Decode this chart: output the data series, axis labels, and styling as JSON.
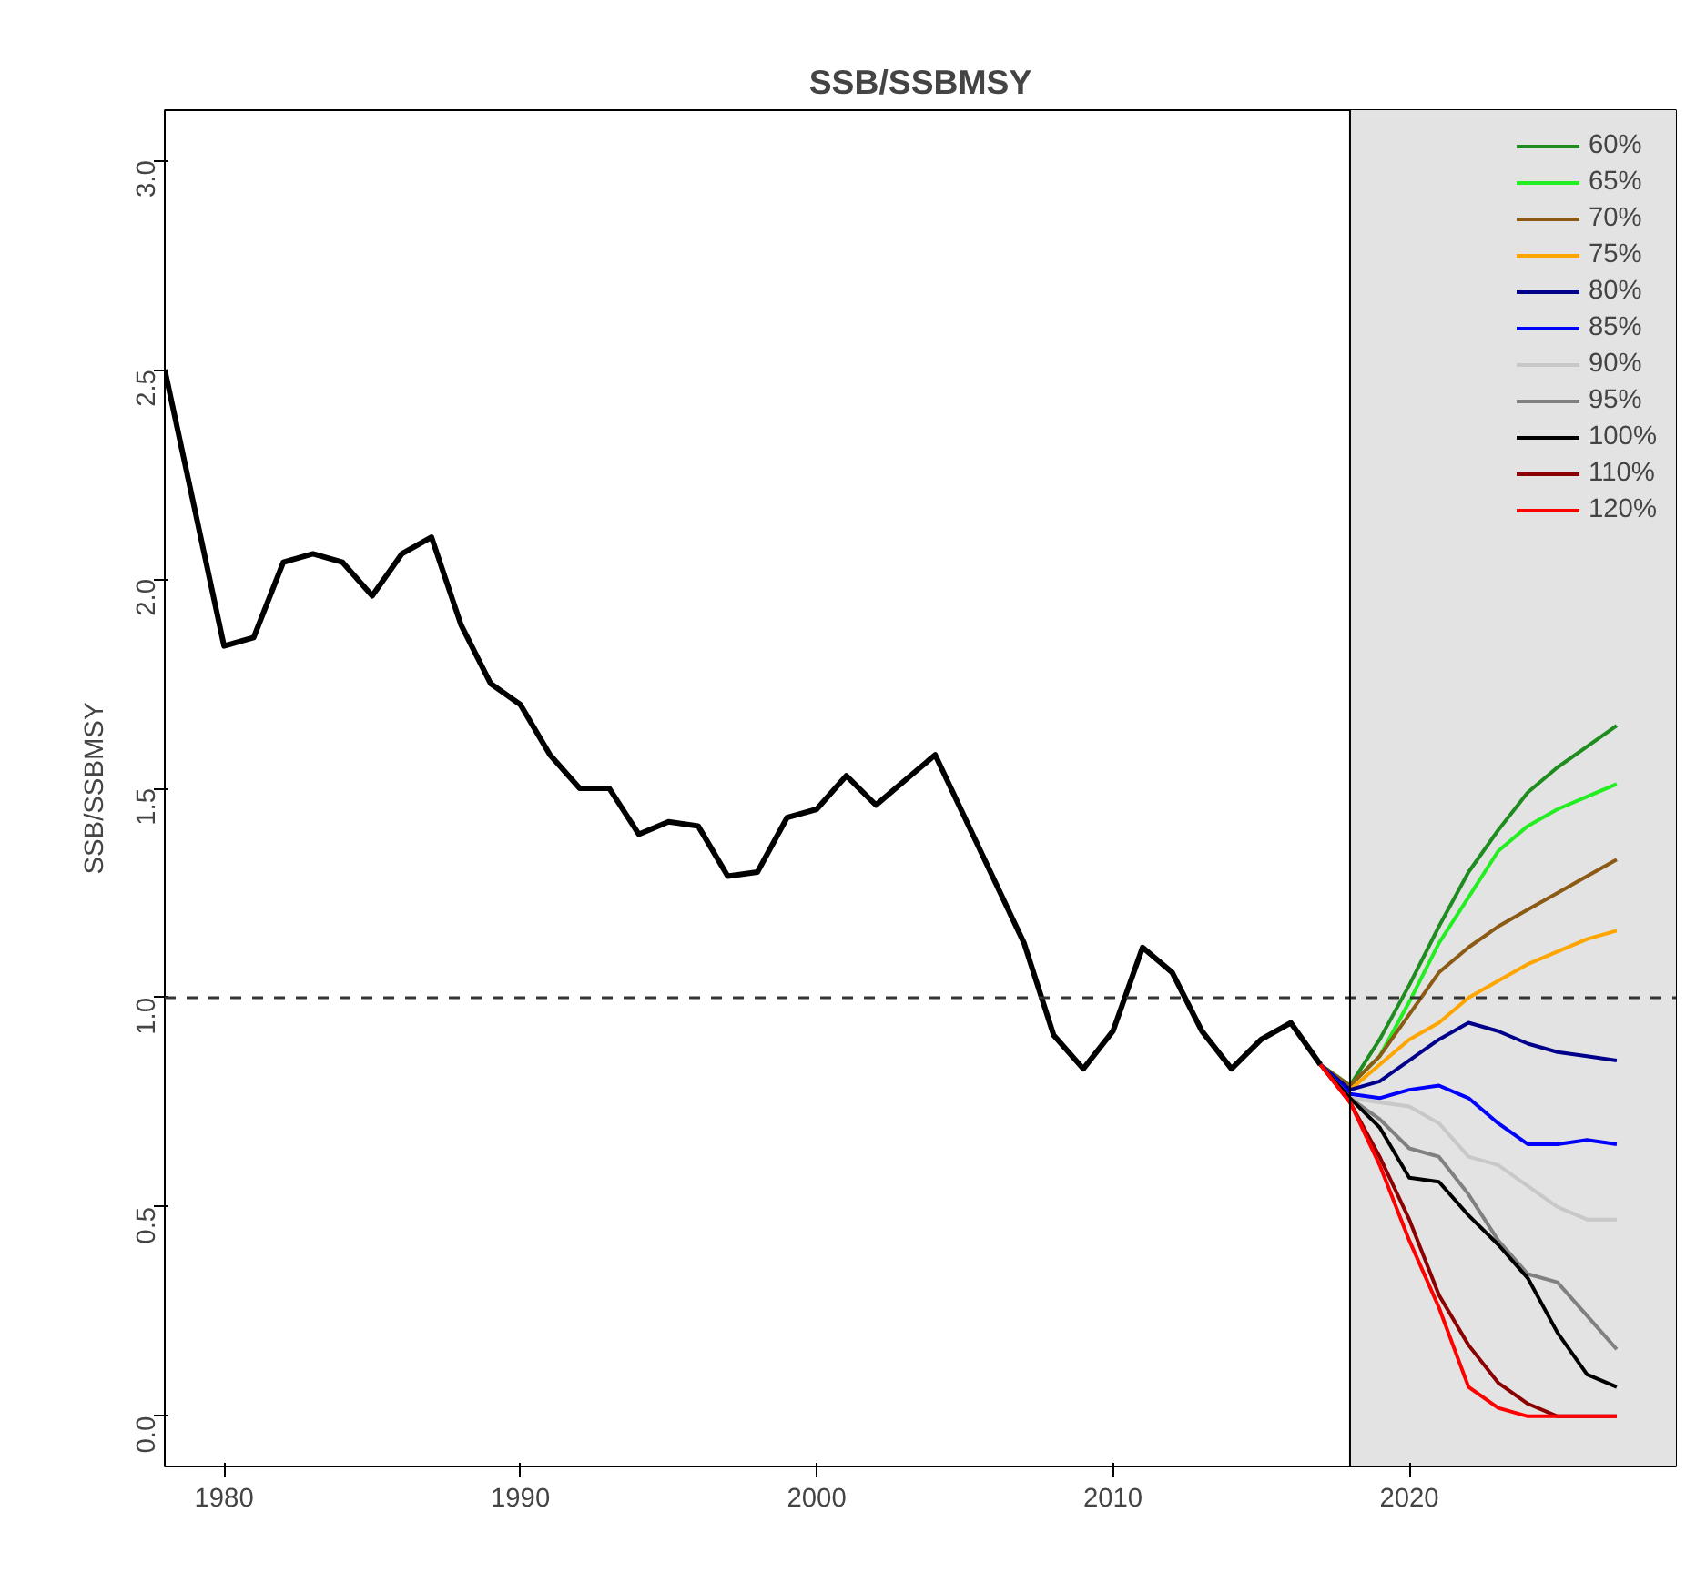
{
  "chart_data": {
    "type": "line",
    "title": "SSB/SSBMSY",
    "ylabel": "SSB/SSBMSY",
    "xlim": [
      1978,
      2029
    ],
    "xticks": [
      1980,
      1990,
      2000,
      2010,
      2020
    ],
    "ylim": [
      -0.12,
      3.12
    ],
    "yticks": [
      {
        "value": 0,
        "label": "0.0"
      },
      {
        "value": 0.5,
        "label": "0.5"
      },
      {
        "value": 1,
        "label": "1.0"
      },
      {
        "value": 1.5,
        "label": "1.5"
      },
      {
        "value": 2,
        "label": "2.0"
      },
      {
        "value": 2.5,
        "label": "2.5"
      },
      {
        "value": 3,
        "label": "3.0"
      }
    ],
    "grid": false,
    "legend": "top right",
    "line_style": "solid",
    "marker": "none",
    "ref_lines": [
      {
        "axis": "y",
        "value": 1,
        "label": null,
        "color": "#333333",
        "line_style": "dashed"
      },
      {
        "axis": "x",
        "value": 2018,
        "label": null,
        "color": "#000000",
        "line_style": "solid"
      }
    ],
    "bands": [
      {
        "axis": "x",
        "from": 2018,
        "to": 2029,
        "label": null,
        "color": "#e3e3e3"
      }
    ],
    "series": [
      {
        "color": "#000000",
        "x": [
          1978,
          1979,
          1980,
          1981,
          1982,
          1983,
          1984,
          1985,
          1986,
          1987,
          1988,
          1989,
          1990,
          1991,
          1992,
          1993,
          1994,
          1995,
          1996,
          1997,
          1998,
          1999,
          2000,
          2001,
          2002,
          2003,
          2004,
          2005,
          2006,
          2007,
          2008,
          2009,
          2010,
          2011,
          2012,
          2013,
          2014,
          2015,
          2016,
          2017
        ],
        "values": [
          2.5,
          2.17,
          1.84,
          1.86,
          2.04,
          2.06,
          2.04,
          1.96,
          2.06,
          2.1,
          1.89,
          1.75,
          1.7,
          1.58,
          1.5,
          1.5,
          1.39,
          1.42,
          1.41,
          1.29,
          1.3,
          1.43,
          1.45,
          1.53,
          1.46,
          1.52,
          1.58,
          1.43,
          1.28,
          1.13,
          0.91,
          0.83,
          0.92,
          1.12,
          1.06,
          0.92,
          0.83,
          0.9,
          0.94,
          0.84
        ]
      },
      {
        "name": "60%",
        "color": "#1e8c1e",
        "values": [
          0.84,
          0.79,
          0.9,
          1.03,
          1.17,
          1.3,
          1.4,
          1.49,
          1.55,
          1.6,
          1.65
        ]
      },
      {
        "name": "65%",
        "color": "#22ee22",
        "values": [
          0.84,
          0.79,
          0.86,
          0.99,
          1.13,
          1.24,
          1.35,
          1.41,
          1.45,
          1.48,
          1.51
        ]
      },
      {
        "name": "70%",
        "color": "#8b5a14",
        "values": [
          0.84,
          0.79,
          0.86,
          0.96,
          1.06,
          1.12,
          1.17,
          1.21,
          1.25,
          1.29,
          1.33
        ]
      },
      {
        "name": "75%",
        "color": "#ffa500",
        "values": [
          0.84,
          0.78,
          0.84,
          0.9,
          0.94,
          1.0,
          1.04,
          1.08,
          1.11,
          1.14,
          1.16
        ]
      },
      {
        "name": "80%",
        "color": "#00008b",
        "values": [
          0.84,
          0.78,
          0.8,
          0.85,
          0.9,
          0.94,
          0.92,
          0.89,
          0.87,
          0.86,
          0.85
        ]
      },
      {
        "name": "85%",
        "color": "#0000ff",
        "values": [
          0.84,
          0.77,
          0.76,
          0.78,
          0.79,
          0.76,
          0.7,
          0.65,
          0.65,
          0.66,
          0.65
        ]
      },
      {
        "name": "90%",
        "color": "#c8c8c8",
        "values": [
          0.84,
          0.76,
          0.75,
          0.74,
          0.7,
          0.62,
          0.6,
          0.55,
          0.5,
          0.47,
          0.47
        ]
      },
      {
        "name": "95%",
        "color": "#808080",
        "values": [
          0.84,
          0.76,
          0.71,
          0.64,
          0.62,
          0.53,
          0.42,
          0.34,
          0.32,
          0.24,
          0.16
        ]
      },
      {
        "name": "100%",
        "color": "#000000",
        "values": [
          0.84,
          0.76,
          0.69,
          0.57,
          0.56,
          0.48,
          0.41,
          0.33,
          0.2,
          0.1,
          0.07
        ]
      },
      {
        "name": "110%",
        "color": "#8b0000",
        "values": [
          0.84,
          0.75,
          0.62,
          0.47,
          0.29,
          0.17,
          0.08,
          0.03,
          0.0,
          0.0,
          0.0
        ]
      },
      {
        "name": "120%",
        "color": "#ff0000",
        "values": [
          0.84,
          0.75,
          0.6,
          0.42,
          0.26,
          0.07,
          0.02,
          0.0,
          0.0,
          0.0,
          0.0
        ]
      }
    ],
    "x": [
      2017,
      2018,
      2019,
      2020,
      2021,
      2022,
      2023,
      2024,
      2025,
      2026,
      2027
    ]
  }
}
